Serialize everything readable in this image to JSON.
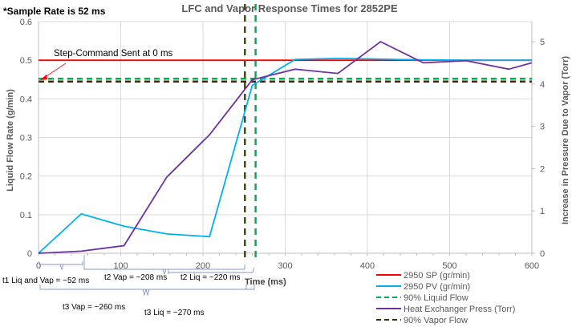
{
  "chart_data": {
    "type": "line",
    "title": "LFC and Vapor Response Times for 2852PE",
    "note": "*Sample Rate is 52 ms",
    "xlabel": "Time (ms)",
    "ylabel": "Liquid Flow Rate (g/min)",
    "y2label": "Increase in Pressure Due to Vapor (Torr)",
    "xlim": [
      0,
      600
    ],
    "ylim": [
      0,
      0.6
    ],
    "y2lim": [
      0,
      5.5
    ],
    "x_ticks": [
      "0",
      "100",
      "200",
      "300",
      "400",
      "500",
      "600"
    ],
    "y_ticks": [
      "0",
      "0.1",
      "0.2",
      "0.3",
      "0.4",
      "0.5",
      "0.6"
    ],
    "y2_ticks": [
      "0",
      "1",
      "2",
      "3",
      "4",
      "5"
    ],
    "grid": true,
    "legend_position": "bottom-right",
    "series": [
      {
        "name": "2950 SP (gr/min)",
        "axis": "left",
        "color": "#ff0000",
        "style": "solid",
        "x": [
          0,
          600
        ],
        "values": [
          0.5,
          0.5
        ]
      },
      {
        "name": "2950 PV (gr/min)",
        "axis": "left",
        "color": "#00b0f0",
        "style": "solid",
        "x": [
          0,
          52,
          104,
          156,
          208,
          260,
          312,
          364,
          416,
          468,
          520,
          572,
          600
        ],
        "values": [
          0,
          0.102,
          0.07,
          0.05,
          0.043,
          0.435,
          0.502,
          0.505,
          0.503,
          0.501,
          0.5,
          0.5,
          0.5
        ]
      },
      {
        "name": "90% Liquid Flow",
        "axis": "left",
        "color": "#00b050",
        "style": "dashed",
        "horizontal_y": 0.45,
        "vertical_x": 264
      },
      {
        "name": "Heat Exchanger Press (Torr)",
        "axis": "right",
        "color": "#7030a0",
        "style": "solid",
        "x": [
          0,
          52,
          104,
          156,
          208,
          260,
          312,
          364,
          416,
          468,
          520,
          572,
          600
        ],
        "values": [
          0,
          0.05,
          0.18,
          1.8,
          2.8,
          4.1,
          4.35,
          4.25,
          5.0,
          4.5,
          4.55,
          4.35,
          4.5
        ]
      },
      {
        "name": "90% Vapor Flow",
        "axis": "left",
        "color": "#3b2a10",
        "style": "dashed",
        "horizontal_y": 0.447,
        "vertical_x": 251
      }
    ],
    "annotations": [
      {
        "text": "Step-Command  Sent at 0 ms",
        "arrow_to": [
          0,
          0.5
        ]
      },
      {
        "text": "t1 Liq and Vap = ~52 ms"
      },
      {
        "text": "t2 Vap = ~208 ms"
      },
      {
        "text": "t2 Liq = ~220 ms"
      },
      {
        "text": "t3 Vap = ~260 ms"
      },
      {
        "text": "t3 Liq = ~270 ms"
      }
    ]
  }
}
